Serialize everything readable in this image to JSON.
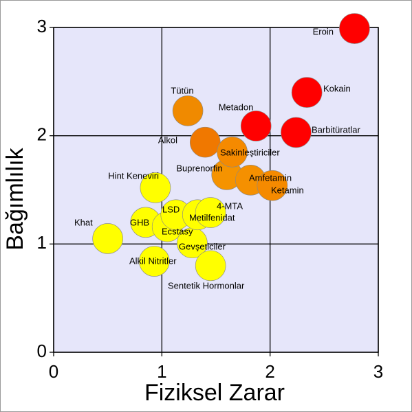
{
  "chart_data": {
    "type": "scatter",
    "xlabel": "Fiziksel Zarar",
    "ylabel": "Bağımlılık",
    "labels": [
      "Khat",
      "Alkil Nitritler",
      "GHB",
      "Hint Keneviri",
      "Ecstasy",
      "LSD",
      "Gevşeticiler",
      "Sentetik Hormonlar",
      "Metilfenidat",
      "4-MTA",
      "Tütün",
      "Alkol",
      "Buprenorfin",
      "Sakinleştiriciler",
      "Amfetamin",
      "Ketamin",
      "Metadon",
      "Barbitüratlar",
      "Kokain",
      "Eroin"
    ],
    "x": [
      0.5,
      0.93,
      0.85,
      0.94,
      1.05,
      1.13,
      1.28,
      1.45,
      1.33,
      1.45,
      1.24,
      1.4,
      1.6,
      1.65,
      1.82,
      2.02,
      1.87,
      2.24,
      2.34,
      2.78
    ],
    "y": [
      1.05,
      0.84,
      1.2,
      1.52,
      1.16,
      1.27,
      1.01,
      0.8,
      1.27,
      1.29,
      2.23,
      1.94,
      1.64,
      1.85,
      1.59,
      1.54,
      2.09,
      2.03,
      2.4,
      2.99
    ],
    "colors": [
      "#ffff00",
      "#ffff00",
      "#ffff00",
      "#ffff00",
      "#ffff00",
      "#ffff00",
      "#ffff00",
      "#ffff00",
      "#ffff00",
      "#ffff00",
      "#f08a00",
      "#f07800",
      "#f59300",
      "#f58a00",
      "#f59000",
      "#f58a00",
      "#ff0000",
      "#ff0000",
      "#ff0000",
      "#ff0000"
    ],
    "xlim": [
      0,
      3
    ],
    "ylim": [
      0,
      3
    ],
    "xticks": [
      0,
      1,
      2,
      3
    ],
    "yticks": [
      0,
      1,
      2,
      3
    ],
    "grid": true
  }
}
